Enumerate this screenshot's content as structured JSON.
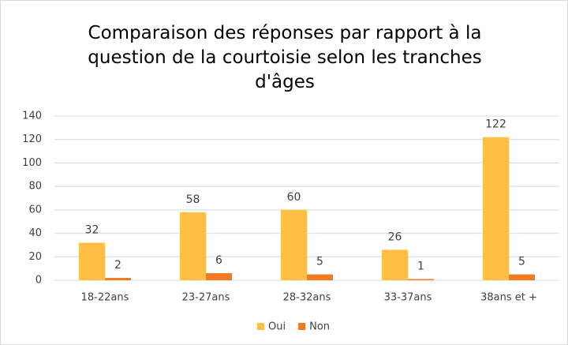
{
  "chart_data": {
    "type": "bar",
    "title": "Comparaison des réponses par rapport à la question de la courtoisie selon les tranches d'âges",
    "categories": [
      "18-22ans",
      "23-27ans",
      "28-32ans",
      "33-37ans",
      "38ans et +"
    ],
    "series": [
      {
        "name": "Oui",
        "color": "#ffbf47",
        "values": [
          32,
          58,
          60,
          26,
          122
        ]
      },
      {
        "name": "Non",
        "color": "#f37a1f",
        "values": [
          2,
          6,
          5,
          1,
          5
        ]
      }
    ],
    "ylim": [
      0,
      140
    ],
    "yticks": [
      0,
      20,
      40,
      60,
      80,
      100,
      120,
      140
    ],
    "grid": true,
    "legend": "bottom"
  }
}
